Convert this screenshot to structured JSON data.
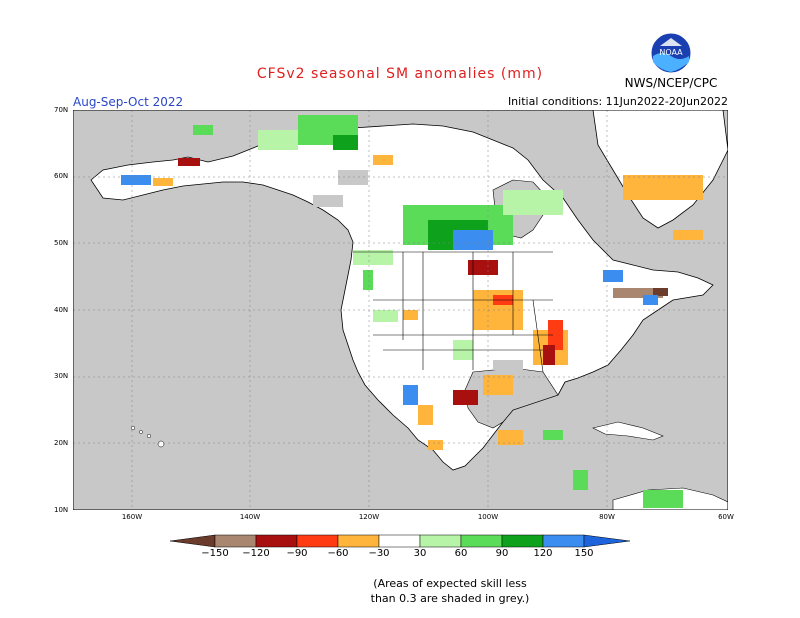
{
  "header": {
    "title": "CFSv2 seasonal SM anomalies (mm)",
    "org": "NWS/NCEP/CPC",
    "season": "Aug-Sep-Oct 2022",
    "initial_conditions": "Initial conditions: 11Jun2022-20Jun2022",
    "logo_text": "NOAA"
  },
  "map": {
    "lat_labels": [
      "70N",
      "60N",
      "50N",
      "40N",
      "30N",
      "20N",
      "10N"
    ],
    "lon_labels": [
      "160W",
      "140W",
      "120W",
      "100W",
      "80W",
      "60W"
    ],
    "colors": {
      "land": "#ffffff",
      "ocean": "#c8c8c8",
      "grey_skill": "#c8c8c8"
    }
  },
  "colorbar": {
    "ticks": [
      "−150",
      "−120",
      "−90",
      "−60",
      "−30",
      "30",
      "60",
      "90",
      "120",
      "150"
    ],
    "colors": [
      "#6b3b2b",
      "#a8866f",
      "#a81010",
      "#ff3b14",
      "#ffb43c",
      "#ffffff",
      "#b8f4a8",
      "#5adc58",
      "#0ea21c",
      "#3b8ef0",
      "#1e64dc"
    ]
  },
  "note": {
    "line1": "(Areas of expected skill less",
    "line2": "than 0.3 are shaded in grey.)"
  }
}
